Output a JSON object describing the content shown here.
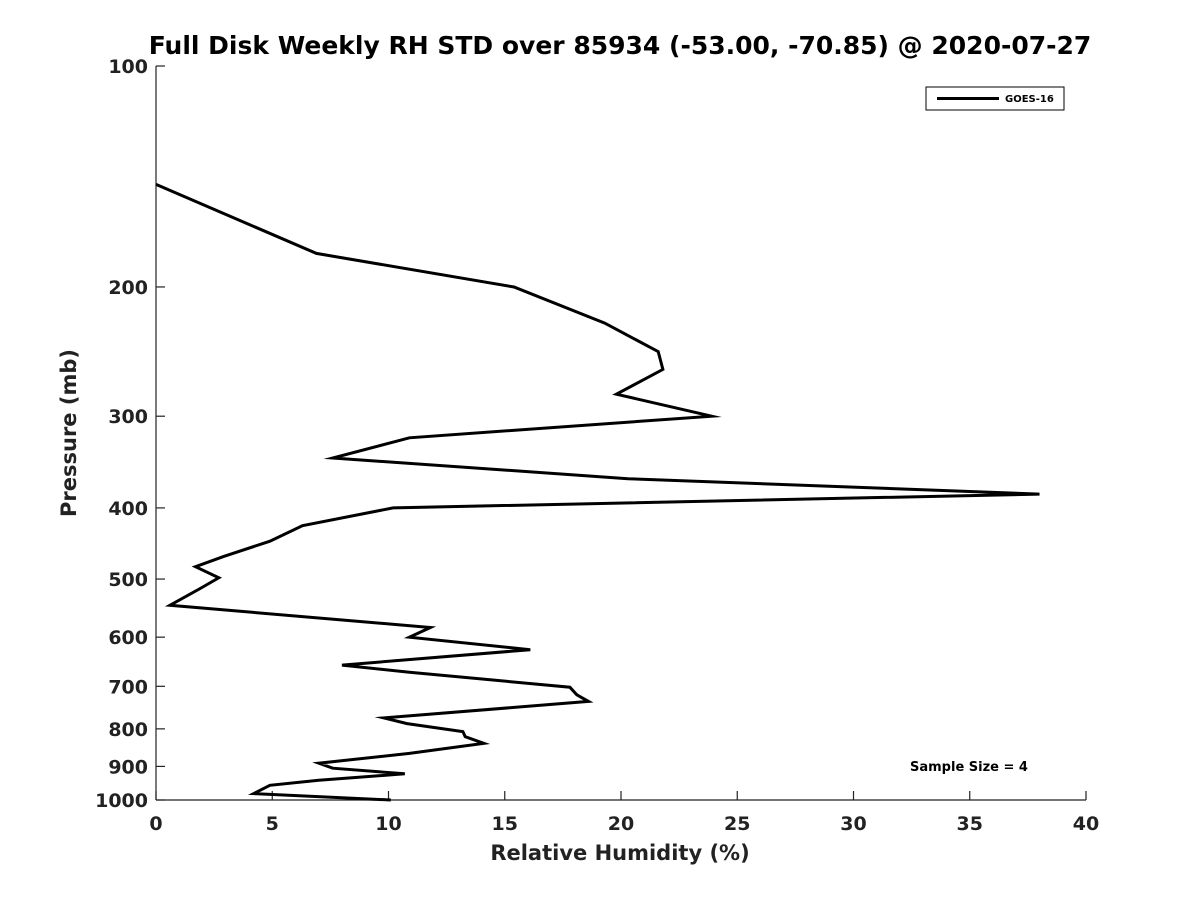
{
  "chart_data": {
    "type": "line",
    "title": "Full Disk Weekly RH STD over 85934 (-53.00, -70.85) @ 2020-07-27",
    "xlabel": "Relative Humidity (%)",
    "ylabel": "Pressure (mb)",
    "xlim": [
      0,
      40
    ],
    "ylim": [
      100,
      1000
    ],
    "y_scale": "log",
    "y_reversed": true,
    "grid": false,
    "legend_position": "top-right",
    "x_ticks": [
      0,
      5,
      10,
      15,
      20,
      25,
      30,
      35,
      40
    ],
    "y_ticks": [
      100,
      200,
      300,
      400,
      500,
      600,
      700,
      800,
      900,
      1000
    ],
    "annotation": "Sample Size = 4",
    "line_color": "#000000",
    "series": [
      {
        "name": "GOES-16",
        "x": [
          0.0,
          6.9,
          15.4,
          19.3,
          21.6,
          21.8,
          19.8,
          23.9,
          10.9,
          7.6,
          20.3,
          38.0,
          10.2,
          6.3,
          4.9,
          2.9,
          1.7,
          2.7,
          1.9,
          0.6,
          11.8,
          10.9,
          16.1,
          8.0,
          10.9,
          17.8,
          18.1,
          18.6,
          9.8,
          10.8,
          13.2,
          13.3,
          14.1,
          10.9,
          7.0,
          7.6,
          10.7,
          7.0,
          4.9,
          4.2,
          10.1
        ],
        "y": [
          145,
          180,
          200,
          224,
          245,
          259,
          280,
          300,
          321,
          342,
          365,
          383,
          400,
          423,
          444,
          466,
          481,
          498,
          515,
          543,
          582,
          600,
          624,
          655,
          670,
          702,
          719,
          734,
          773,
          787,
          807,
          820,
          837,
          864,
          891,
          905,
          921,
          940,
          955,
          980,
          1000
        ]
      }
    ]
  }
}
